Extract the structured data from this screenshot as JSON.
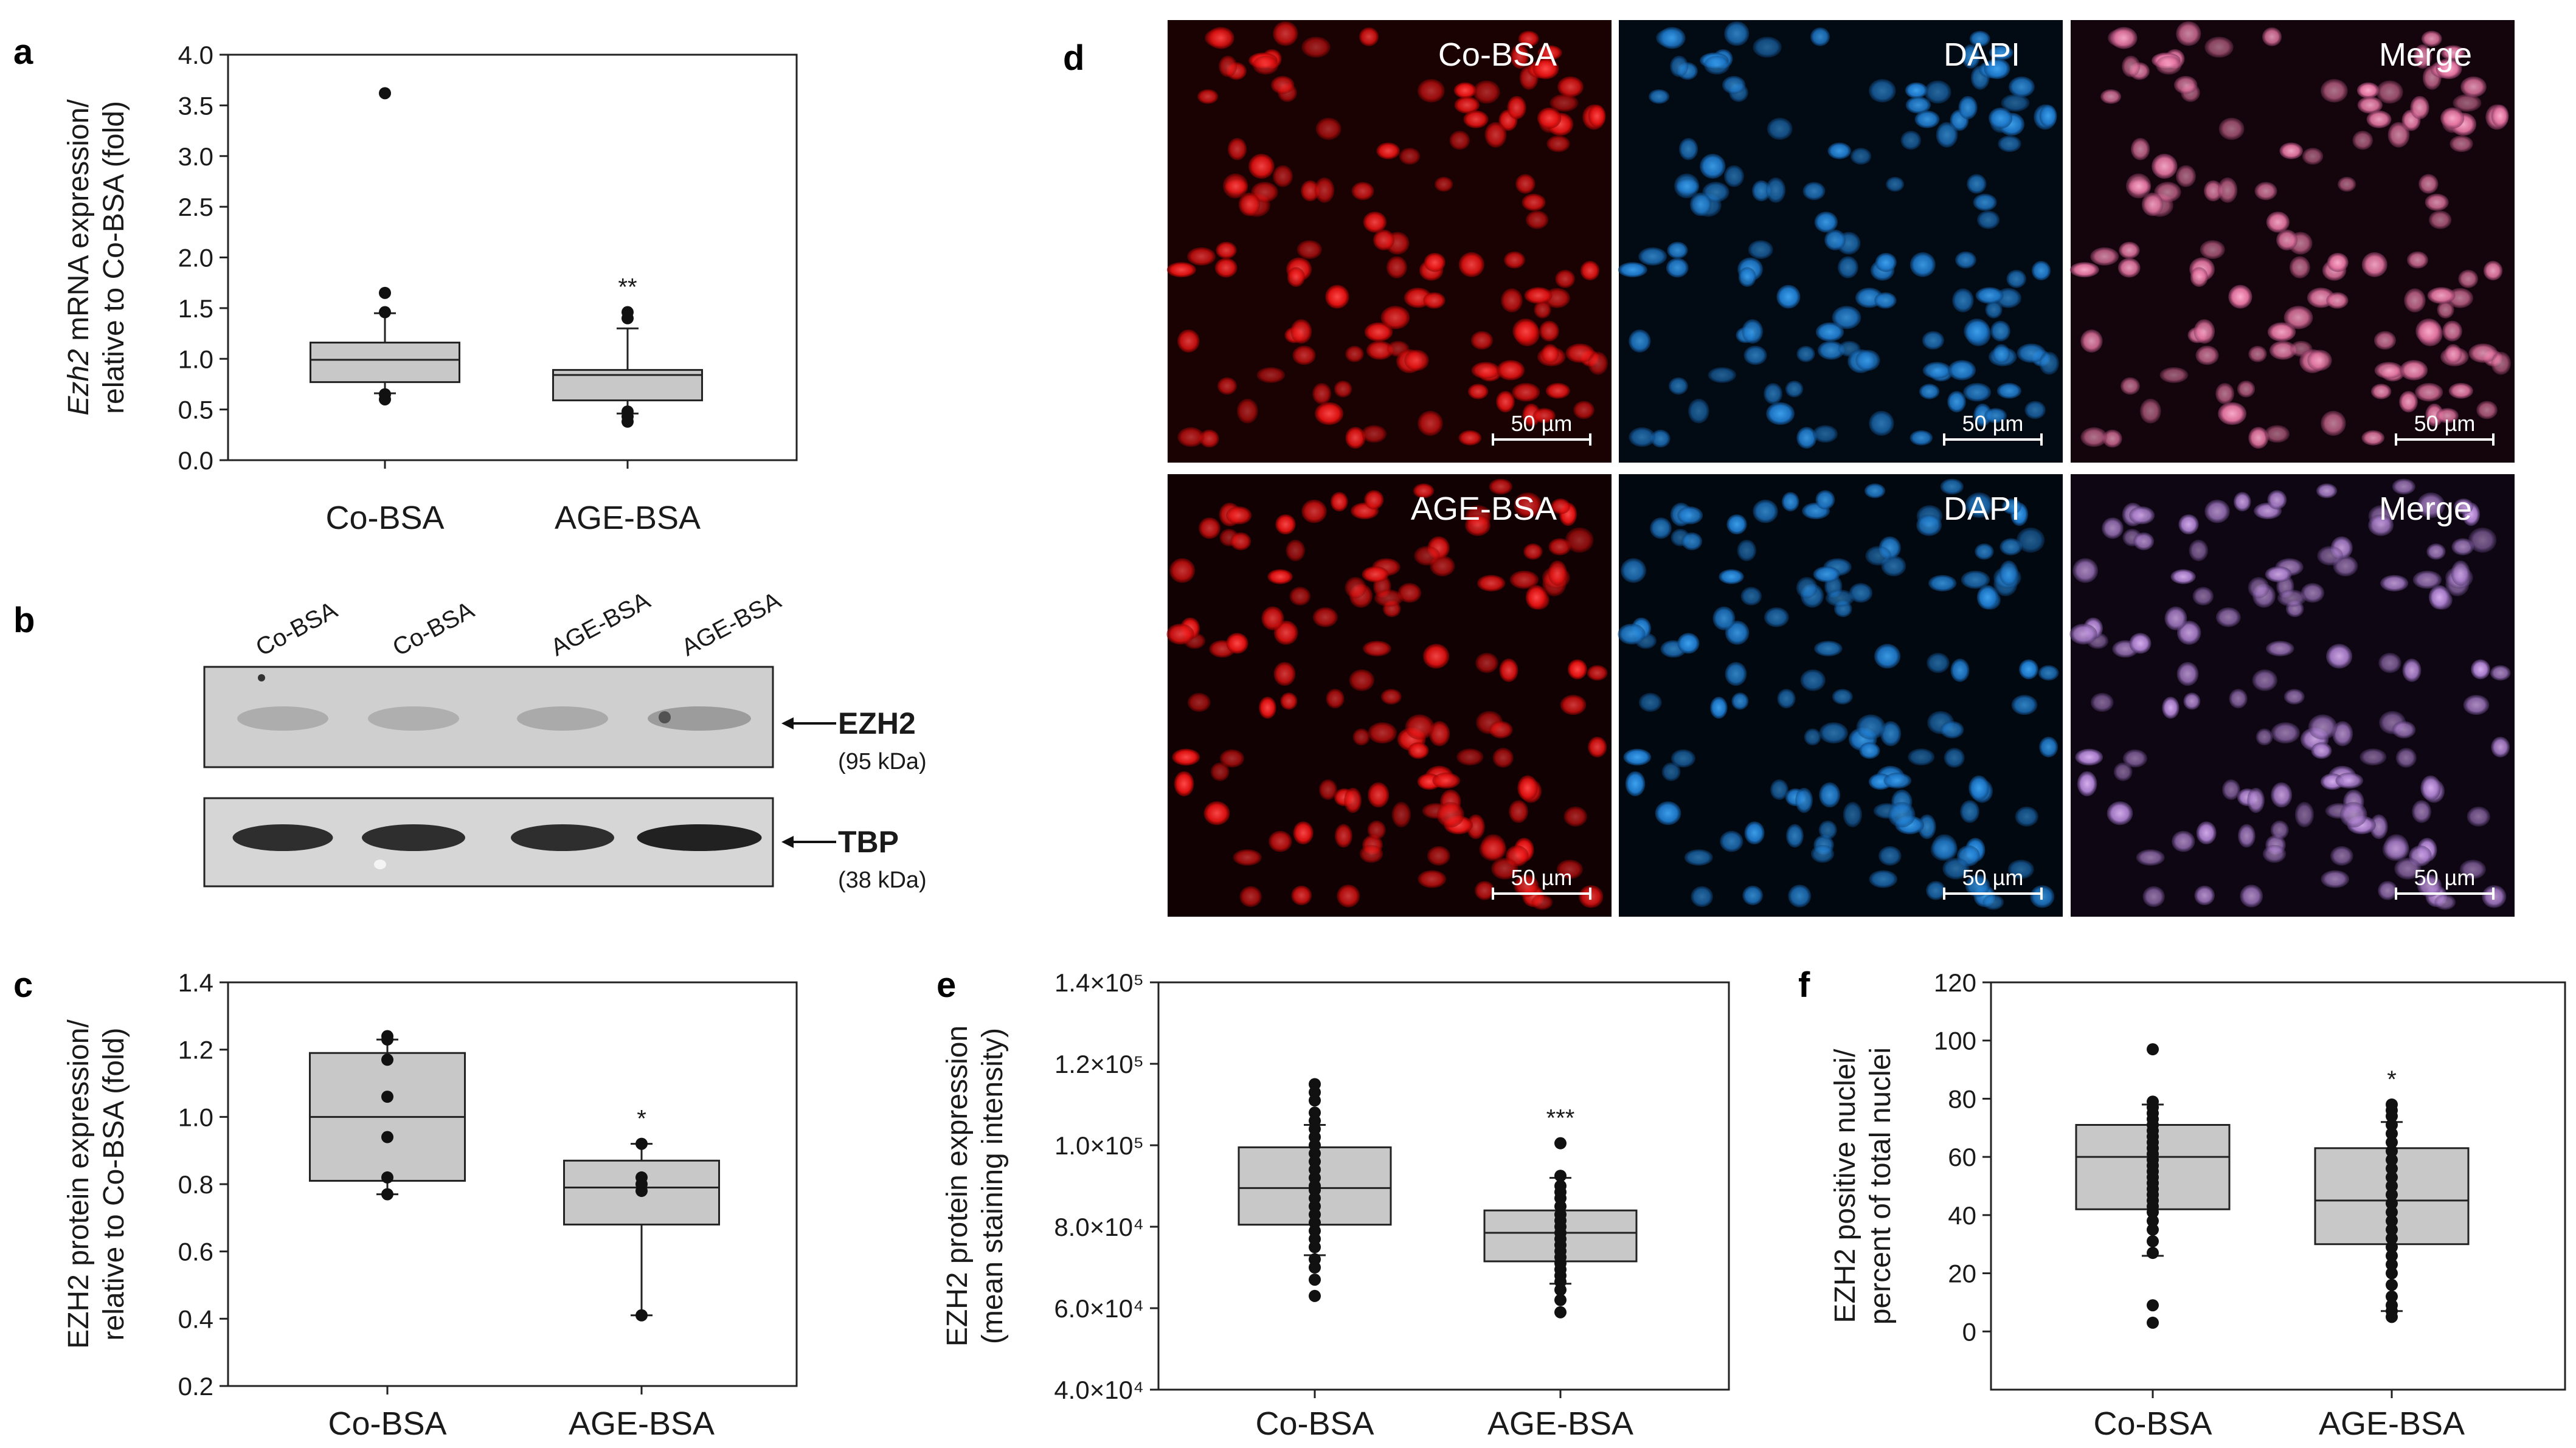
{
  "panels": {
    "a": "a",
    "b": "b",
    "c": "c",
    "d": "d",
    "e": "e",
    "f": "f"
  },
  "chart_data": [
    {
      "id": "a",
      "type": "box",
      "ylabel_italic": "Ezh2",
      "ylabel_line1_rest": " mRNA expression/",
      "ylabel_line2": "relative to Co-BSA (fold)",
      "categories": [
        "Co-BSA",
        "AGE-BSA"
      ],
      "ylim": [
        0,
        4.0
      ],
      "yticks": [
        "0.0",
        "0.5",
        "1.0",
        "1.5",
        "2.0",
        "2.5",
        "3.0",
        "3.5",
        "4.0"
      ],
      "ytick_values": [
        0,
        0.5,
        1.0,
        1.5,
        2.0,
        2.5,
        3.0,
        3.5,
        4.0
      ],
      "boxes": [
        {
          "q1": 0.77,
          "median": 0.99,
          "q3": 1.16,
          "whisker_low": 0.66,
          "whisker_high": 1.45,
          "outliers": [
            3.62,
            1.65,
            1.46,
            0.65,
            0.6
          ]
        },
        {
          "q1": 0.59,
          "median": 0.84,
          "q3": 0.89,
          "whisker_low": 0.46,
          "whisker_high": 1.3,
          "outliers": [
            1.46,
            1.4,
            0.48,
            0.43,
            0.38
          ]
        }
      ],
      "significance": [
        "",
        "**"
      ]
    },
    {
      "id": "c",
      "type": "box",
      "ylabel_line1": "EZH2 protein expression/",
      "ylabel_line2": "relative to Co-BSA (fold)",
      "categories": [
        "Co-BSA",
        "AGE-BSA"
      ],
      "ylim": [
        0.2,
        1.4
      ],
      "yticks": [
        "0.2",
        "0.4",
        "0.6",
        "0.8",
        "1.0",
        "1.2",
        "1.4"
      ],
      "ytick_values": [
        0.2,
        0.4,
        0.6,
        0.8,
        1.0,
        1.2,
        1.4
      ],
      "boxes": [
        {
          "q1": 0.81,
          "median": 1.0,
          "q3": 1.19,
          "whisker_low": 0.77,
          "whisker_high": 1.23,
          "points": [
            1.24,
            1.23,
            1.17,
            1.06,
            0.94,
            0.82,
            0.77
          ]
        },
        {
          "q1": 0.68,
          "median": 0.79,
          "q3": 0.87,
          "whisker_low": 0.41,
          "whisker_high": 0.92,
          "points": [
            0.92,
            0.82,
            0.8,
            0.78,
            0.41
          ]
        }
      ],
      "significance": [
        "",
        "*"
      ]
    },
    {
      "id": "e",
      "type": "box",
      "ylabel_line1": "EZH2 protein expression",
      "ylabel_line2": "(mean staining intensity)",
      "categories": [
        "Co-BSA",
        "AGE-BSA"
      ],
      "ylim": [
        40000,
        140000
      ],
      "yticks": [
        "4.0×10⁴",
        "6.0×10⁴",
        "8.0×10⁴",
        "1.0×10⁵",
        "1.2×10⁵",
        "1.4×10⁵"
      ],
      "ytick_values": [
        40000,
        60000,
        80000,
        100000,
        120000,
        140000
      ],
      "boxes": [
        {
          "q1": 80500,
          "median": 89500,
          "q3": 99500,
          "whisker_low": 73000,
          "whisker_high": 105000,
          "points": [
            115000,
            113000,
            111000,
            108000,
            106000,
            104000,
            102000,
            100000,
            98000,
            96000,
            94000,
            92000,
            90000,
            89000,
            87000,
            85000,
            83000,
            81000,
            79000,
            77000,
            75000,
            72000,
            70000,
            67000,
            63000
          ]
        },
        {
          "q1": 71500,
          "median": 78500,
          "q3": 84000,
          "whisker_low": 66000,
          "whisker_high": 92000,
          "points": [
            100500,
            92500,
            90000,
            88500,
            87000,
            85000,
            83000,
            81500,
            80000,
            78500,
            77000,
            75500,
            74000,
            72500,
            71000,
            69500,
            68000,
            66500,
            64500,
            62000,
            59000
          ]
        }
      ],
      "significance": [
        "",
        "***"
      ]
    },
    {
      "id": "f",
      "type": "box",
      "ylabel_line1": "EZH2 positive nuclei/",
      "ylabel_line2": "percent of total nuclei",
      "categories": [
        "Co-BSA",
        "AGE-BSA"
      ],
      "ylim": [
        -20,
        120
      ],
      "yticks": [
        "0",
        "20",
        "40",
        "60",
        "80",
        "100",
        "120"
      ],
      "ytick_values": [
        0,
        20,
        40,
        60,
        80,
        100,
        120
      ],
      "boxes": [
        {
          "q1": 42,
          "median": 60,
          "q3": 71,
          "whisker_low": 26,
          "whisker_high": 78,
          "points": [
            97,
            79,
            77,
            75,
            73,
            71,
            69,
            67,
            65,
            63,
            61,
            59,
            57,
            55,
            53,
            51,
            49,
            47,
            45,
            43,
            41,
            38,
            35,
            31,
            27,
            9,
            3
          ]
        },
        {
          "q1": 30,
          "median": 45,
          "q3": 63,
          "whisker_low": 7,
          "whisker_high": 72,
          "points": [
            78,
            76,
            74,
            71,
            68,
            65,
            62,
            59,
            56,
            53,
            50,
            47,
            44,
            41,
            38,
            35,
            32,
            29,
            26,
            23,
            20,
            16,
            12,
            9,
            7,
            5
          ]
        }
      ],
      "significance": [
        "",
        "*"
      ]
    }
  ],
  "blot": {
    "lanes": [
      "Co-BSA",
      "Co-BSA",
      "AGE-BSA",
      "AGE-BSA"
    ],
    "rows": [
      {
        "protein": "EZH2",
        "kda": "(95 kDa)"
      },
      {
        "protein": "TBP",
        "kda": "(38 kDa)"
      }
    ]
  },
  "microscopy": {
    "rows": [
      {
        "titles": [
          "Co-BSA",
          "DAPI",
          "Merge"
        ]
      },
      {
        "titles": [
          "AGE-BSA",
          "DAPI",
          "Merge"
        ]
      }
    ],
    "scale_bar": "50 µm",
    "channels": {
      "ezh2": "#ff1a1a",
      "dapi": "#1e7fd6",
      "merge": "#e06a9a"
    }
  }
}
